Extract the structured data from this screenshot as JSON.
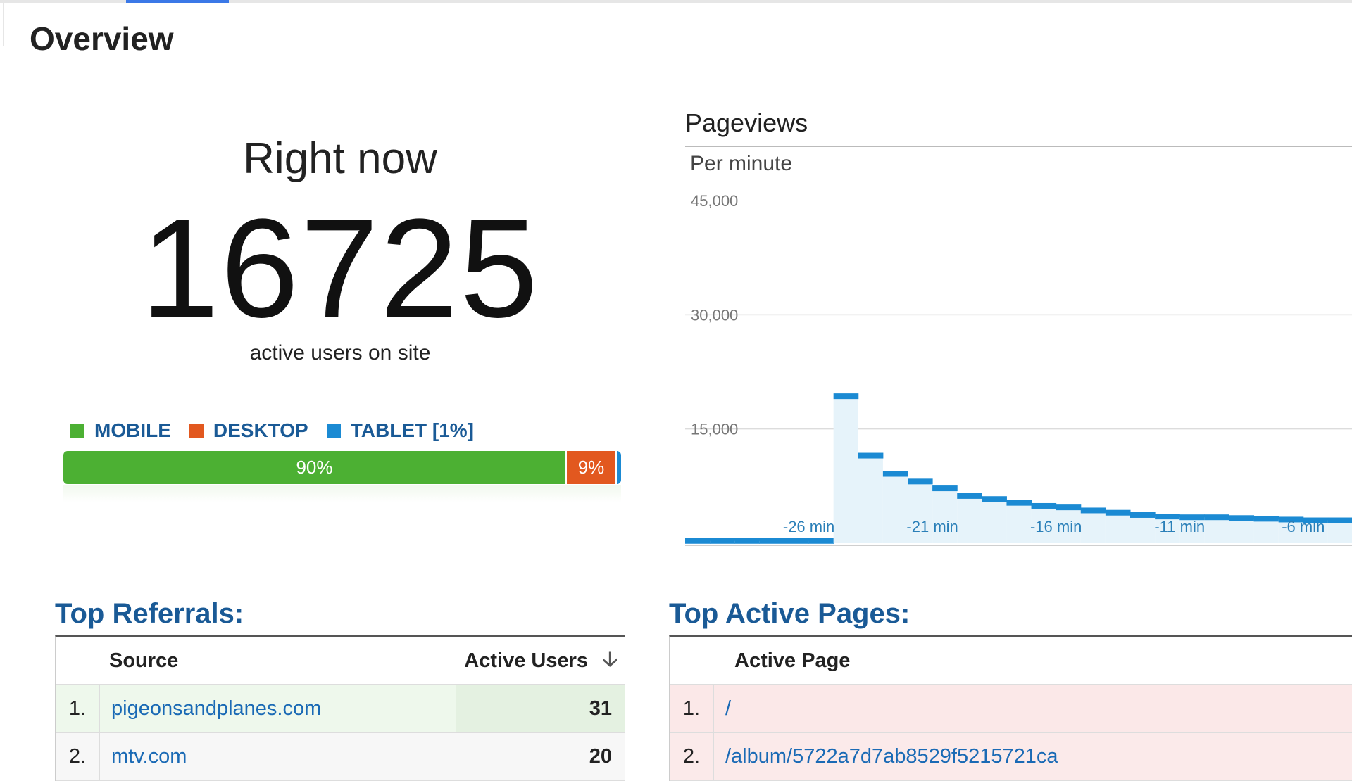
{
  "page": {
    "title": "Overview"
  },
  "right_now": {
    "title": "Right now",
    "count": "16725",
    "subtitle": "active users on site"
  },
  "devices": {
    "legend": [
      {
        "label": "MOBILE",
        "color": "#4cb033"
      },
      {
        "label": "DESKTOP",
        "color": "#e2581f"
      },
      {
        "label": "TABLET [1%]",
        "color": "#1b8ad3"
      }
    ],
    "mobile_pct": 90,
    "desktop_pct": 9,
    "tablet_pct": 1,
    "mobile_label": "90%",
    "desktop_label": "9%"
  },
  "pageviews": {
    "title": "Pageviews",
    "subtitle": "Per minute",
    "chart_data": {
      "type": "bar",
      "y_ticks": [
        "45,000",
        "30,000",
        "15,000"
      ],
      "y_tick_values": [
        45000,
        30000,
        15000
      ],
      "ylim": [
        0,
        45000
      ],
      "x_tick_labels": [
        "-26 min",
        "-21 min",
        "-16 min",
        "-11 min",
        "-6 min"
      ],
      "x_tick_minutes": [
        -26,
        -21,
        -16,
        -11,
        -6
      ],
      "series_color": "#1b8ad3",
      "fill_color": "#e6f3fa",
      "grid": true,
      "points": [
        {
          "minute": -31,
          "value": 300
        },
        {
          "minute": -30,
          "value": 300
        },
        {
          "minute": -29,
          "value": 300
        },
        {
          "minute": -28,
          "value": 300
        },
        {
          "minute": -27,
          "value": 300
        },
        {
          "minute": -26,
          "value": 300
        },
        {
          "minute": -25,
          "value": 19300
        },
        {
          "minute": -24,
          "value": 11500
        },
        {
          "minute": -23,
          "value": 9100
        },
        {
          "minute": -22,
          "value": 8100
        },
        {
          "minute": -21,
          "value": 7200
        },
        {
          "minute": -20,
          "value": 6200
        },
        {
          "minute": -19,
          "value": 5800
        },
        {
          "minute": -18,
          "value": 5300
        },
        {
          "minute": -17,
          "value": 4900
        },
        {
          "minute": -16,
          "value": 4700
        },
        {
          "minute": -15,
          "value": 4300
        },
        {
          "minute": -14,
          "value": 4000
        },
        {
          "minute": -13,
          "value": 3700
        },
        {
          "minute": -12,
          "value": 3500
        },
        {
          "minute": -11,
          "value": 3400
        },
        {
          "minute": -10,
          "value": 3400
        },
        {
          "minute": -9,
          "value": 3300
        },
        {
          "minute": -8,
          "value": 3200
        },
        {
          "minute": -7,
          "value": 3100
        },
        {
          "minute": -6,
          "value": 3000
        },
        {
          "minute": -5,
          "value": 3000
        }
      ]
    }
  },
  "top_referrals": {
    "title": "Top Referrals:",
    "columns": {
      "source": "Source",
      "active_users": "Active Users"
    },
    "rows": [
      {
        "rank": "1.",
        "source": "pigeonsandplanes.com",
        "users": "31"
      },
      {
        "rank": "2.",
        "source": "mtv.com",
        "users": "20"
      }
    ]
  },
  "top_active_pages": {
    "title": "Top Active Pages:",
    "columns": {
      "page": "Active Page"
    },
    "rows": [
      {
        "rank": "1.",
        "page": "/"
      },
      {
        "rank": "2.",
        "page": "/album/5722a7d7ab8529f5215721ca"
      }
    ]
  }
}
